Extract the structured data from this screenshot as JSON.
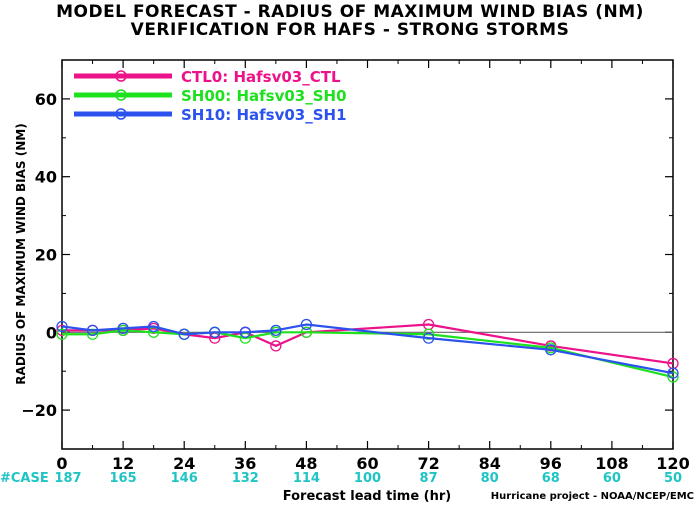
{
  "chart_data": {
    "type": "line",
    "title": "MODEL FORECAST - RADIUS OF MAXIMUM WIND BIAS (NM)",
    "subtitle": "VERIFICATION FOR HAFS - STRONG STORMS",
    "xlabel": "Forecast lead time (hr)",
    "ylabel": "RADIUS OF MAXIMUM WIND BIAS (NM)",
    "xlim": [
      0,
      120
    ],
    "ylim": [
      -30,
      70
    ],
    "xticks": [
      0,
      12,
      24,
      36,
      48,
      60,
      72,
      84,
      96,
      108,
      120
    ],
    "yticks": [
      -20,
      0,
      20,
      40,
      60
    ],
    "grid": false,
    "legend_position": "top-left",
    "case_label": "#CASE",
    "case_counts": [
      187,
      165,
      146,
      132,
      114,
      100,
      87,
      80,
      68,
      60,
      50
    ],
    "series": [
      {
        "name": "CTL0: Hafsv03_CTL",
        "color": "#ec128a",
        "x": [
          0,
          6,
          12,
          18,
          24,
          30,
          36,
          42,
          48,
          72,
          96,
          120
        ],
        "y": [
          0.5,
          0.5,
          0.5,
          1.0,
          -0.5,
          -1.5,
          0.0,
          -3.5,
          0.0,
          2.0,
          -3.5,
          -8.0
        ]
      },
      {
        "name": "SH00: Hafsv03_SH0",
        "color": "#1ee11e",
        "x": [
          0,
          6,
          12,
          18,
          24,
          30,
          36,
          42,
          48,
          72,
          96,
          120
        ],
        "y": [
          -0.5,
          -0.5,
          0.5,
          0.0,
          -0.5,
          0.0,
          -1.5,
          0.0,
          0.0,
          -0.5,
          -4.0,
          -11.5
        ]
      },
      {
        "name": "SH10: Hafsv03_SH1",
        "color": "#2b52ee",
        "x": [
          0,
          6,
          12,
          18,
          24,
          30,
          36,
          42,
          48,
          72,
          96,
          120
        ],
        "y": [
          1.5,
          0.5,
          1.0,
          1.5,
          -0.5,
          0.0,
          0.0,
          0.5,
          2.0,
          -1.5,
          -4.5,
          -10.5
        ]
      }
    ]
  },
  "footer": {
    "credit": "Hurricane project - NOAA/NCEP/EMC"
  }
}
